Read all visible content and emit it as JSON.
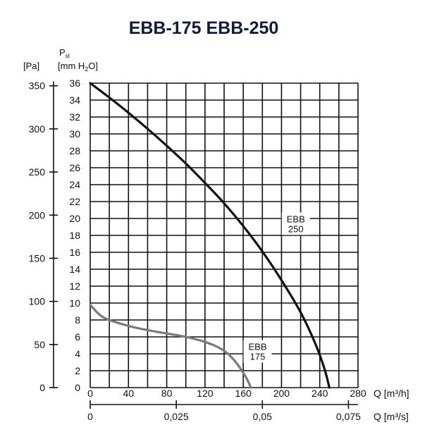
{
  "chart_data": {
    "type": "line",
    "title": "EBB-175  EBB-250",
    "y_left": {
      "unit_label": "[Pa]",
      "ticks": [
        "0",
        "50",
        "100",
        "150",
        "200",
        "250",
        "300",
        "350"
      ],
      "values": [
        0,
        50,
        100,
        150,
        200,
        250,
        300,
        350
      ]
    },
    "y_right": {
      "symbol": "P",
      "symbol_sub": "st",
      "unit_prefix": "[mm H",
      "unit_sub": "2",
      "unit_suffix": "O]",
      "ticks": [
        "0",
        "2",
        "4",
        "6",
        "8",
        "10",
        "12",
        "14",
        "16",
        "18",
        "20",
        "22",
        "24",
        "26",
        "28",
        "30",
        "32",
        "34",
        "36"
      ],
      "values": [
        0,
        2,
        4,
        6,
        8,
        10,
        12,
        14,
        16,
        18,
        20,
        22,
        24,
        26,
        28,
        30,
        32,
        34,
        36
      ],
      "ylim": [
        0,
        36
      ]
    },
    "x_primary": {
      "label": "Q [m³/h]",
      "ticks": [
        "0",
        "40",
        "80",
        "120",
        "160",
        "200",
        "240",
        "280"
      ],
      "values": [
        0,
        40,
        80,
        120,
        160,
        200,
        240,
        280
      ],
      "xlim": [
        0,
        280
      ]
    },
    "x_secondary": {
      "label": "Q [m³/s]",
      "ticks": [
        "0",
        "0,025",
        "0,05",
        "0,075"
      ],
      "values": [
        0,
        0.025,
        0.05,
        0.075
      ]
    },
    "grid": true,
    "series": [
      {
        "name": "EBB 250",
        "label_lines": [
          "EBB",
          "250"
        ],
        "color": "#111111",
        "x": [
          0,
          20,
          40,
          60,
          80,
          100,
          120,
          140,
          160,
          180,
          200,
          220,
          235,
          245,
          250
        ],
        "y": [
          36,
          34.3,
          32.5,
          30.6,
          28.6,
          26.5,
          24.2,
          21.8,
          19.1,
          16.1,
          12.7,
          8.9,
          5.3,
          2.2,
          0
        ]
      },
      {
        "name": "EBB 175",
        "label_lines": [
          "EBB",
          "175"
        ],
        "color": "#7a7a7a",
        "x": [
          0,
          10,
          20,
          40,
          60,
          80,
          100,
          120,
          135,
          145,
          155,
          163,
          168
        ],
        "y": [
          9.8,
          8.6,
          8.0,
          7.3,
          6.8,
          6.4,
          6.0,
          5.4,
          4.7,
          3.9,
          2.6,
          1.2,
          0
        ]
      }
    ]
  }
}
